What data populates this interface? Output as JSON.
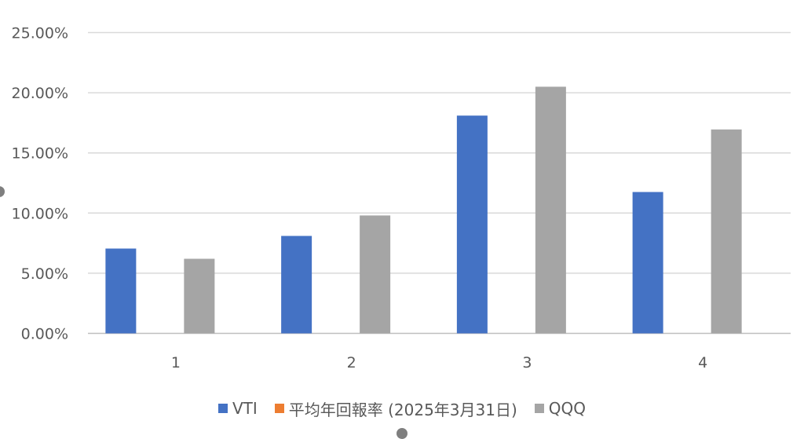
{
  "chart_data": {
    "type": "bar",
    "categories": [
      "1",
      "2",
      "3",
      "4"
    ],
    "series": [
      {
        "name": "VTI",
        "color": "#4472C4",
        "values": [
          0.0705,
          0.081,
          0.181,
          0.1175
        ]
      },
      {
        "name": "平均年回報率 (2025年3月31日)",
        "color": "#ED7D31",
        "values": [
          0,
          0,
          0,
          0
        ]
      },
      {
        "name": "QQQ",
        "color": "#A5A5A5",
        "values": [
          0.062,
          0.098,
          0.205,
          0.1695
        ]
      }
    ],
    "y_ticks": [
      "0.00%",
      "5.00%",
      "10.00%",
      "15.00%",
      "20.00%",
      "25.00%"
    ],
    "ylim": [
      0,
      0.25
    ],
    "grid": true,
    "legend_position": "bottom",
    "title": "",
    "xlabel": "",
    "ylabel": ""
  }
}
